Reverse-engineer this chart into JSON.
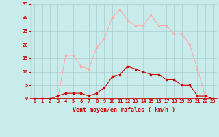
{
  "x": [
    0,
    1,
    2,
    3,
    4,
    5,
    6,
    7,
    8,
    9,
    10,
    11,
    12,
    13,
    14,
    15,
    16,
    17,
    18,
    19,
    20,
    21,
    22,
    23
  ],
  "rafales": [
    0,
    0,
    0,
    0,
    16,
    16,
    12,
    11,
    19,
    22,
    30,
    33,
    29,
    27,
    27,
    31,
    27,
    27,
    24,
    24,
    20,
    11,
    1,
    0
  ],
  "moyen": [
    0,
    0,
    0,
    1,
    2,
    2,
    2,
    1,
    2,
    4,
    8,
    9,
    12,
    11,
    10,
    9,
    9,
    7,
    7,
    5,
    5,
    1,
    1,
    0
  ],
  "color_rafales": "#ffaaaa",
  "color_moyen": "#cc0000",
  "bg_color": "#c8ecec",
  "grid_color": "#aacccc",
  "xlabel": "Vent moyen/en rafales ( km/h )",
  "ylim": [
    0,
    35
  ],
  "xlim": [
    -0.5,
    23.5
  ],
  "yticks": [
    0,
    5,
    10,
    15,
    20,
    25,
    30,
    35
  ],
  "xticks": [
    0,
    1,
    2,
    3,
    4,
    5,
    6,
    7,
    8,
    9,
    10,
    11,
    12,
    13,
    14,
    15,
    16,
    17,
    18,
    19,
    20,
    21,
    22,
    23
  ]
}
